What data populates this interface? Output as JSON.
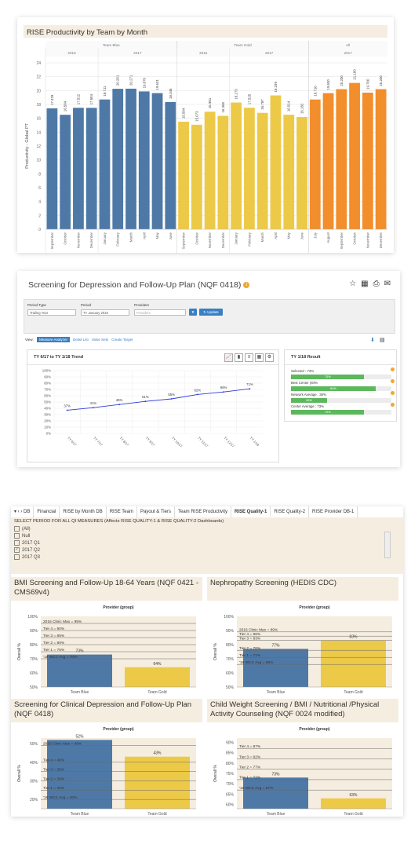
{
  "panel1": {
    "title": "RISE Productivity by Team by Month",
    "y_axis_label": "Productivity - Global PT",
    "chart_data": {
      "type": "bar",
      "title": "RISE Productivity by Team by Month",
      "ylabel": "Productivity - Global PT",
      "ylim": [
        0,
        24
      ],
      "yticks": [
        "0",
        "2",
        "4",
        "6",
        "8",
        "10",
        "12",
        "14",
        "16",
        "18",
        "20",
        "22",
        "24"
      ],
      "groups": [
        {
          "team": "Team Blue",
          "years": [
            {
              "year": "2016",
              "months": [
                "September",
                "October",
                "November",
                "December"
              ]
            },
            {
              "year": "2017",
              "months": [
                "January",
                "February",
                "March",
                "April",
                "May",
                "June"
              ]
            }
          ],
          "color": "#4e79a7"
        },
        {
          "team": "Team Gold",
          "years": [
            {
              "year": "2016",
              "months": [
                "September",
                "October",
                "November",
                "December"
              ]
            },
            {
              "year": "2017",
              "months": [
                "January",
                "February",
                "March",
                "April",
                "May",
                "June"
              ]
            }
          ],
          "color": "#edc948"
        },
        {
          "team": "All",
          "years": [
            {
              "year": "2017",
              "months": [
                "July",
                "August",
                "September",
                "October",
                "November",
                "December"
              ]
            }
          ],
          "color": "#f28e2b"
        }
      ],
      "series": [
        {
          "name": "Team Blue",
          "values": [
            17.429,
            16.504,
            17.512,
            17.504,
            18.711,
            20.251,
            20.271,
            19.876,
            19.631,
            18.346
          ]
        },
        {
          "name": "Team Gold",
          "values": [
            15.504,
            15.073,
            16.951,
            16.355,
            18.273,
            17.525,
            16.787,
            19.299,
            16.514,
            16.182
          ]
        },
        {
          "name": "All",
          "values": [
            18.71,
            19.63,
            20.2,
            21.1,
            19.7,
            20.2
          ]
        }
      ]
    }
  },
  "panel2": {
    "title": "Screening for Depression and Follow-Up Plan (NQF 0418)",
    "filters": {
      "period_type_label": "Period Type",
      "period_type_value": "Trailing Year",
      "period_label": "Period",
      "period_value": "TY January 2018",
      "providers_label": "Providers",
      "providers_placeholder": "Providers",
      "update_label": "Update"
    },
    "view_label": "View:",
    "view_options": [
      "Measure Analyzer",
      "Detail List",
      "Value Sets",
      "Create Target"
    ],
    "trend": {
      "title": "TY 6/17 to TY 1/18 Trend",
      "chart_data": {
        "type": "line",
        "x": [
          "TY 6/17",
          "TY 7/17",
          "TY 8/17",
          "TY 9/17",
          "TY 10/17",
          "TY 11/17",
          "TY 12/17",
          "TY 1/18"
        ],
        "values": [
          37,
          41,
          46,
          51,
          55,
          62,
          66,
          71
        ],
        "point_labels": [
          "37%",
          "41%",
          "46%",
          "51%",
          "55%",
          "62%",
          "66%",
          "71%"
        ],
        "yticks": [
          "0%",
          "10%",
          "20%",
          "30%",
          "40%",
          "50%",
          "60%",
          "70%",
          "80%",
          "90%",
          "100%"
        ],
        "ylim": [
          0,
          100
        ]
      }
    },
    "result": {
      "title": "TY 1/18 Result",
      "rows": [
        {
          "label": "Selected - 73%",
          "value": 73,
          "text": "73%"
        },
        {
          "label": "Best Center (84%",
          "value": 84,
          "text": "84%"
        },
        {
          "label": "Network Average : 36%",
          "value": 36,
          "text": "36%"
        },
        {
          "label": "Center Average : 73%",
          "value": 73,
          "text": "73%"
        }
      ]
    }
  },
  "panel3": {
    "tabs": [
      "▾  ‹  › DB",
      "Financial",
      "RISE by Month DB",
      "RISE Team",
      "Payout & Tiers",
      "Team RISE Productivity",
      "RISE Quality-1",
      "RISE Quality-2",
      "RISE Provider DB-1"
    ],
    "active_tab": "RISE Quality-1",
    "period_title": "SELECT PERIOD FOR ALL QI MEASURES (Affects RISE QUALITY-1 & RISE QUALITY-2 Dashboards)",
    "period_options": [
      {
        "label": "(All)",
        "checked": false
      },
      {
        "label": "Null",
        "checked": false
      },
      {
        "label": "2017 Q1",
        "checked": false
      },
      {
        "label": "2017 Q2",
        "checked": true
      },
      {
        "label": "2017 Q3",
        "checked": false
      }
    ],
    "charts": [
      {
        "title": "BMI Screening and Follow-Up 18-64 Years (NQF 0421 - CMS69v4)",
        "header": "Provider (group)",
        "ylabel": "Overall %",
        "yticks": [
          "50%",
          "60%",
          "70%",
          "80%",
          "90%",
          "100%"
        ],
        "ylim": [
          50,
          100
        ],
        "refs": [
          "2016 Clinic Max = 95%",
          "Tier 4 = 90%",
          "Tier 3 = 85%",
          "Tier 2 = 80%",
          "Tier 1 = 75%",
          "'16 WCC Avg = 70%"
        ],
        "ref_values": [
          95,
          90,
          85,
          80,
          75,
          70
        ],
        "chart_data": {
          "type": "bar",
          "categories": [
            "Team Blue",
            "Team Gold"
          ],
          "values": [
            73,
            64
          ],
          "labels": [
            "73%",
            "64%"
          ]
        }
      },
      {
        "title": "Nephropathy Screening (HEDIS CDC)",
        "header": "Provider (group)",
        "ylabel": "Overall %",
        "yticks": [
          "50%",
          "60%",
          "70%",
          "80%",
          "90%",
          "100%"
        ],
        "ylim": [
          50,
          100
        ],
        "refs": [
          "2016 Clinic Max = 89%",
          "Tier 4 = 86%",
          "Tier 3 = 83%",
          "Tier 2 = 76%",
          "Tier 1 = 71%",
          "'16 WCC Avg = 66%"
        ],
        "ref_values": [
          89,
          86,
          83,
          76,
          71,
          66
        ],
        "chart_data": {
          "type": "bar",
          "categories": [
            "Team Blue",
            "Team Gold"
          ],
          "values": [
            77,
            83
          ],
          "labels": [
            "77%",
            "83%"
          ]
        }
      },
      {
        "title": "Screening for Clinical Depression and Follow-Up Plan (NQF 0418)",
        "header": "Provider (group)",
        "ylabel": "Overall %",
        "yticks": [
          "20%",
          "30%",
          "40%",
          "50%"
        ],
        "ylim": [
          15,
          53
        ],
        "refs": [
          "2016 Clinic Max = 49%",
          "Tier 4 = 40%",
          "Tier 3 = 35%",
          "Tier 2 = 30%",
          "Tier 1 = 25%",
          "'16 WCC Avg = 20%"
        ],
        "ref_values": [
          49,
          40,
          35,
          30,
          25,
          20
        ],
        "chart_data": {
          "type": "bar",
          "categories": [
            "Team Blue",
            "Team Gold"
          ],
          "values": [
            52,
            43
          ],
          "labels": [
            "52%",
            "43%"
          ]
        }
      },
      {
        "title": "Child Weight Screening / BMI / Nutritional /Physical Activity Counseling (NQF 0024 modified)",
        "header": "Provider (group)",
        "ylabel": "Overall %",
        "yticks": [
          "60%",
          "65%",
          "70%",
          "75%",
          "80%",
          "85%",
          "90%"
        ],
        "ylim": [
          58,
          92
        ],
        "refs": [
          "Tier 4 = 87%",
          "Tier 3 = 82%",
          "Tier 2 = 77%",
          "Tier 1 = 72%",
          "'16 WCC Avg = 67%"
        ],
        "ref_values": [
          87,
          82,
          77,
          72,
          67
        ],
        "chart_data": {
          "type": "bar",
          "categories": [
            "Team Blue",
            "Team Gold"
          ],
          "values": [
            73,
            63
          ],
          "labels": [
            "73%",
            "63%"
          ]
        }
      }
    ]
  },
  "colors": {
    "blue": "#4e79a7",
    "gold": "#edc948",
    "orange": "#f28e2b",
    "green": "#5cb85c",
    "accent": "#3a7fc4",
    "panelbg": "#f5eddf"
  }
}
